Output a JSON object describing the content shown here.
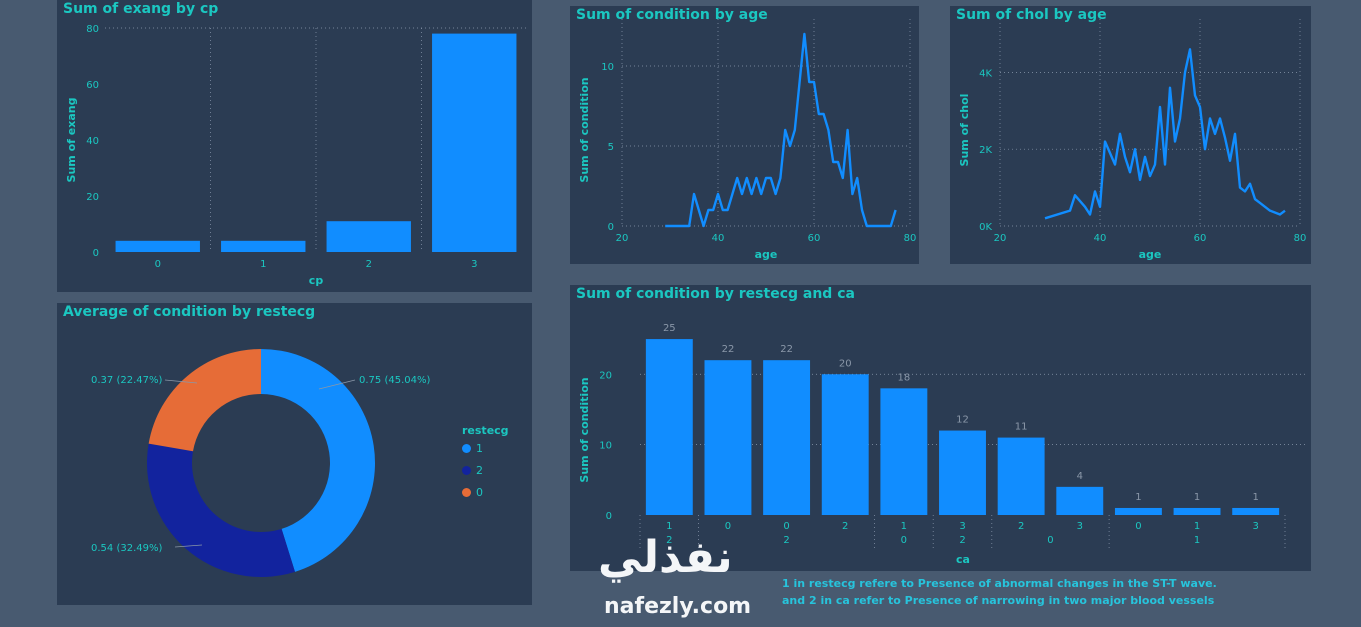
{
  "watermark": {
    "arabic": "نفذلي",
    "latin": "nafezly.com"
  },
  "notes": [
    "1 in restecg refere to Presence of abnormal changes in the ST-T wave.",
    "and 2 in ca refer to Presence of narrowing in two major blood vessels"
  ],
  "colors": {
    "panel": "#2b3c53",
    "page": "#485a70",
    "accent": "#1bc7c1",
    "bar": "#118dff",
    "navy": "#12239e",
    "orange": "#e66c37"
  },
  "chart_data": [
    {
      "id": "exang",
      "type": "bar",
      "title": "Sum of exang by cp",
      "xlabel": "cp",
      "ylabel": "Sum of exang",
      "categories": [
        "0",
        "1",
        "2",
        "3"
      ],
      "values": [
        4,
        4,
        11,
        78
      ],
      "ylim": [
        0,
        80
      ],
      "yticks": [
        "0",
        "20",
        "40",
        "60",
        "80"
      ],
      "grid": true
    },
    {
      "id": "condage",
      "type": "line",
      "title": "Sum of condition by age",
      "xlabel": "age",
      "ylabel": "Sum of condition",
      "xlim": [
        29,
        77
      ],
      "ylim": [
        0,
        12
      ],
      "xticks": [
        "20",
        "40",
        "60",
        "80"
      ],
      "yticks": [
        "0",
        "5",
        "10"
      ],
      "x": [
        29,
        34,
        35,
        36,
        37,
        38,
        39,
        40,
        41,
        42,
        43,
        44,
        45,
        46,
        47,
        48,
        49,
        50,
        51,
        52,
        53,
        54,
        55,
        56,
        57,
        58,
        59,
        60,
        61,
        62,
        63,
        64,
        65,
        66,
        67,
        68,
        69,
        70,
        71,
        72,
        74,
        76,
        77
      ],
      "y": [
        0,
        0,
        2,
        1,
        0,
        1,
        1,
        2,
        1,
        1,
        2,
        3,
        2,
        3,
        2,
        3,
        2,
        3,
        3,
        2,
        3,
        6,
        5,
        6,
        9,
        12,
        9,
        9,
        7,
        7,
        6,
        4,
        4,
        3,
        6,
        2,
        3,
        1,
        0,
        0,
        0,
        0,
        1
      ]
    },
    {
      "id": "cholage",
      "type": "line",
      "title": "Sum of chol by age",
      "xlabel": "age",
      "ylabel": "Sum of chol",
      "xlim": [
        29,
        77
      ],
      "ylim": [
        0,
        5000
      ],
      "xticks": [
        "20",
        "40",
        "60",
        "80"
      ],
      "yticks": [
        "0K",
        "2K",
        "4K"
      ],
      "x": [
        29,
        34,
        35,
        37,
        38,
        39,
        40,
        41,
        42,
        43,
        44,
        45,
        46,
        47,
        48,
        49,
        50,
        51,
        52,
        53,
        54,
        55,
        56,
        57,
        58,
        59,
        60,
        61,
        62,
        63,
        64,
        65,
        66,
        67,
        68,
        69,
        70,
        71,
        72,
        74,
        76,
        77
      ],
      "y": [
        200,
        400,
        800,
        500,
        300,
        900,
        500,
        2200,
        1900,
        1600,
        2400,
        1800,
        1400,
        2000,
        1200,
        1800,
        1300,
        1600,
        3100,
        1600,
        3600,
        2200,
        2800,
        4000,
        4600,
        3400,
        3100,
        2000,
        2800,
        2400,
        2800,
        2300,
        1700,
        2400,
        1000,
        900,
        1100,
        700,
        600,
        400,
        300,
        400
      ]
    },
    {
      "id": "restecg",
      "type": "pie",
      "title": "Average of condition by restecg",
      "legend_title": "restecg",
      "legend": "right",
      "slices": [
        {
          "name": "1",
          "value": 0.75,
          "label": "0.75 (45.04%)",
          "color": "#118dff"
        },
        {
          "name": "2",
          "value": 0.54,
          "label": "0.54 (32.49%)",
          "color": "#12239e"
        },
        {
          "name": "0",
          "value": 0.37,
          "label": "0.37 (22.47%)",
          "color": "#e66c37"
        }
      ]
    },
    {
      "id": "restca",
      "type": "bar",
      "title": "Sum of condition by restecg and ca",
      "xlabel": "ca",
      "ylabel": "Sum of condition",
      "values": [
        25,
        22,
        22,
        20,
        18,
        12,
        11,
        4,
        1,
        1,
        1
      ],
      "data_labels": [
        "25",
        "22",
        "22",
        "20",
        "18",
        "12",
        "11",
        "4",
        "1",
        "1",
        "1"
      ],
      "ca_labels": [
        "1",
        "0",
        "0",
        "2",
        "1",
        "3",
        "2",
        "3",
        "0",
        "1",
        "3"
      ],
      "restecg_groups": [
        {
          "label": "2",
          "start": 0,
          "end": 0
        },
        {
          "label": "2",
          "start": 1,
          "end": 3
        },
        {
          "label": "0",
          "start": 4,
          "end": 4
        },
        {
          "label": "2",
          "start": 5,
          "end": 5
        },
        {
          "label": "0",
          "start": 6,
          "end": 7
        },
        {
          "label": "1",
          "start": 8,
          "end": 10
        }
      ],
      "ylim": [
        0,
        27
      ],
      "yticks": [
        "0",
        "10",
        "20"
      ],
      "grid": true
    }
  ]
}
